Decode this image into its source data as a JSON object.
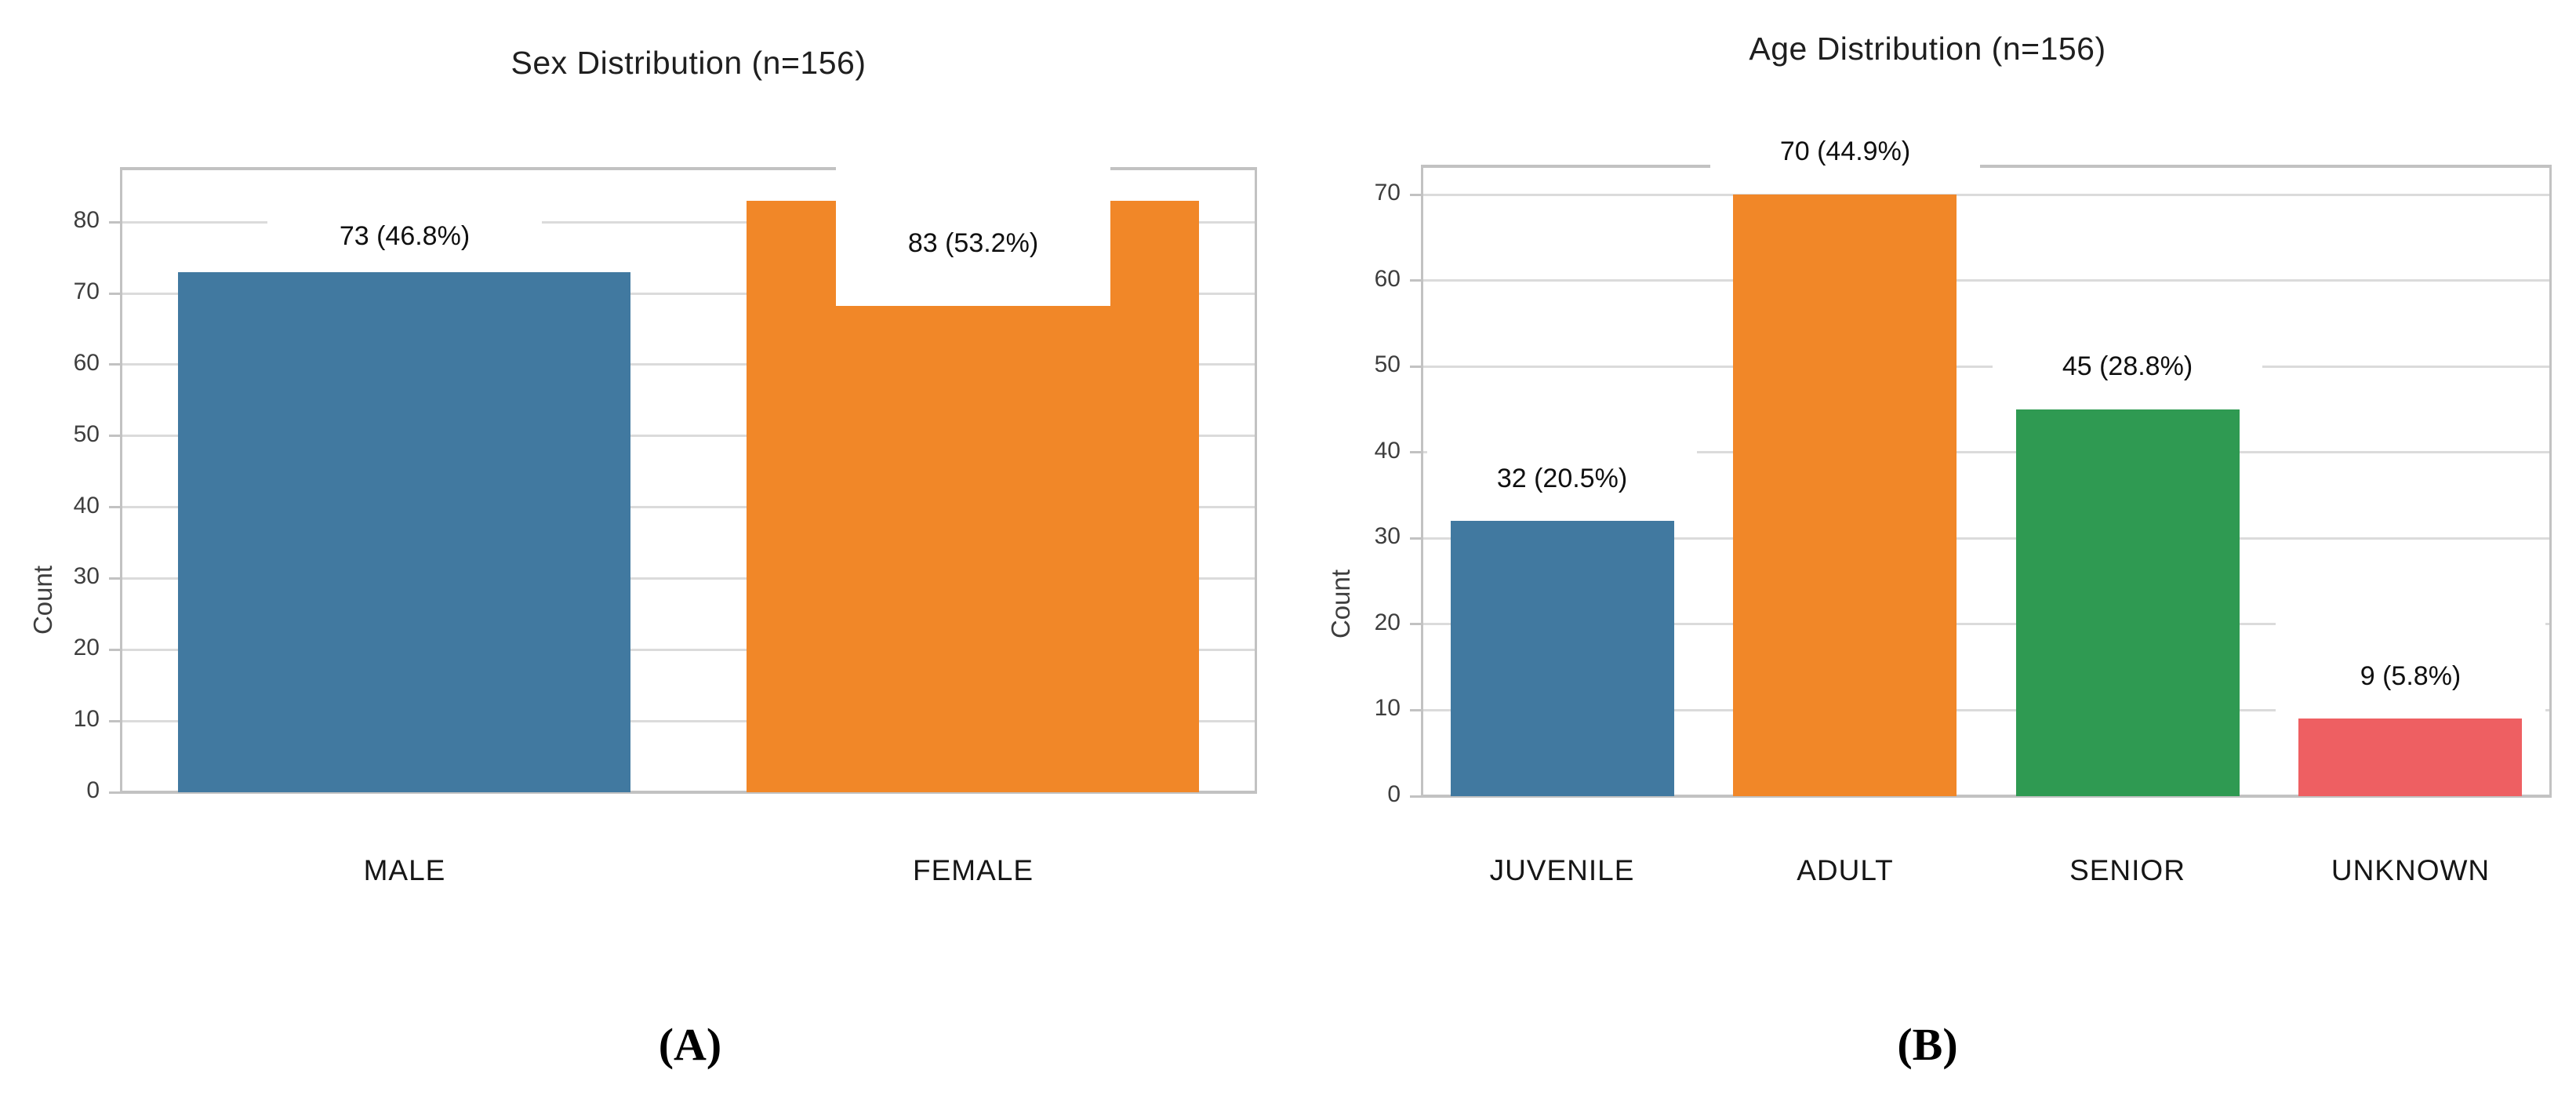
{
  "figure": {
    "background": "#ffffff",
    "panel_captions": [
      "(A)",
      "(B)"
    ]
  },
  "chart_data": [
    {
      "type": "bar",
      "title": "Sex Distribution (n=156)",
      "xlabel": "",
      "ylabel": "Count",
      "caption": "(A)",
      "n_total": 156,
      "categories": [
        "MALE",
        "FEMALE"
      ],
      "values": [
        73,
        83
      ],
      "percent_labels": [
        "73 (46.8%)",
        "83 (53.2%)"
      ],
      "bar_colors": [
        "#4179A0",
        "#F18728"
      ],
      "yticks": [
        0,
        10,
        20,
        30,
        40,
        50,
        60,
        70,
        80
      ],
      "ylim": [
        0,
        87.5
      ],
      "grid": true,
      "legend": false,
      "layout_hints": {
        "label_y_units": [
          78,
          77
        ],
        "label_has_white_box": [
          true,
          true
        ],
        "top_spine_gap_over_bar_index": 1
      }
    },
    {
      "type": "bar",
      "title": "Age Distribution (n=156)",
      "xlabel": "",
      "ylabel": "Count",
      "caption": "(B)",
      "n_total": 156,
      "categories": [
        "JUVENILE",
        "ADULT",
        "SENIOR",
        "UNKNOWN"
      ],
      "values": [
        32,
        70,
        45,
        9
      ],
      "percent_labels": [
        "32 (20.5%)",
        "70 (44.9%)",
        "45 (28.8%)",
        "9 (5.8%)"
      ],
      "bar_colors": [
        "#4179A0",
        "#F18728",
        "#2F9A52",
        "#EE5F62"
      ],
      "yticks": [
        0,
        10,
        20,
        30,
        40,
        50,
        60,
        70
      ],
      "ylim": [
        0,
        73.3
      ],
      "grid": true,
      "legend": false,
      "layout_hints": {
        "label_y_units": [
          37,
          75,
          50,
          14
        ],
        "label_has_white_box": [
          true,
          true,
          true,
          true
        ],
        "top_spine_gap_over_bar_index": 1
      }
    }
  ]
}
